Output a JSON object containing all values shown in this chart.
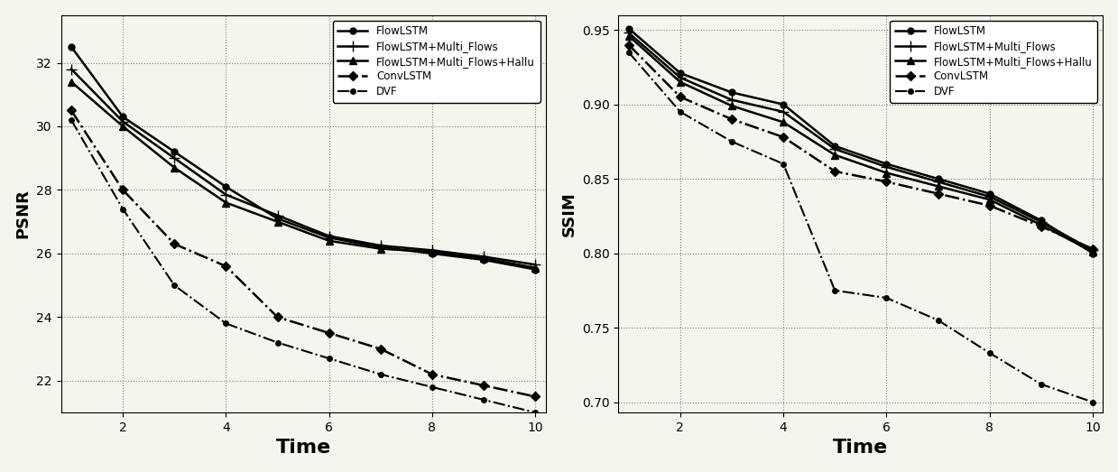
{
  "x": [
    1,
    2,
    3,
    4,
    5,
    6,
    7,
    8,
    9,
    10
  ],
  "psnr": {
    "FlowLSTM": [
      32.5,
      30.3,
      29.2,
      28.1,
      27.1,
      26.5,
      26.2,
      26.0,
      25.8,
      25.5
    ],
    "FlowLSTM+Multi_Flows": [
      31.8,
      30.15,
      29.0,
      27.85,
      27.2,
      26.55,
      26.25,
      26.1,
      25.9,
      25.65
    ],
    "FlowLSTM+Multi_Flows+Hallu": [
      31.4,
      30.0,
      28.7,
      27.6,
      27.0,
      26.4,
      26.15,
      26.05,
      25.85,
      25.55
    ],
    "ConvLSTM": [
      30.5,
      28.0,
      26.3,
      25.6,
      24.0,
      23.5,
      23.0,
      22.2,
      21.85,
      21.5
    ],
    "DVF": [
      30.2,
      27.4,
      25.0,
      23.8,
      23.2,
      22.7,
      22.2,
      21.8,
      21.4,
      21.0
    ]
  },
  "ssim": {
    "FlowLSTM": [
      0.951,
      0.921,
      0.908,
      0.9,
      0.872,
      0.86,
      0.85,
      0.84,
      0.822,
      0.8
    ],
    "FlowLSTM+Multi_Flows": [
      0.948,
      0.918,
      0.903,
      0.895,
      0.87,
      0.858,
      0.848,
      0.838,
      0.821,
      0.802
    ],
    "FlowLSTM+Multi_Flows+Hallu": [
      0.946,
      0.915,
      0.899,
      0.888,
      0.866,
      0.854,
      0.845,
      0.836,
      0.819,
      0.801
    ],
    "ConvLSTM": [
      0.94,
      0.905,
      0.89,
      0.878,
      0.855,
      0.848,
      0.84,
      0.832,
      0.818,
      0.803
    ],
    "DVF": [
      0.935,
      0.895,
      0.875,
      0.86,
      0.775,
      0.77,
      0.755,
      0.733,
      0.712,
      0.7
    ]
  },
  "styles": {
    "FlowLSTM": {
      "linestyle": "-",
      "marker": "o",
      "linewidth": 1.8,
      "markersize": 5,
      "markerfacecolor": "black"
    },
    "FlowLSTM+Multi_Flows": {
      "linestyle": "-",
      "marker": "+",
      "linewidth": 1.8,
      "markersize": 8,
      "markerfacecolor": "black"
    },
    "FlowLSTM+Multi_Flows+Hallu": {
      "linestyle": "-",
      "marker": "^",
      "linewidth": 1.8,
      "markersize": 6,
      "markerfacecolor": "black"
    },
    "ConvLSTM": {
      "linestyle": "-.",
      "marker": "D",
      "linewidth": 1.8,
      "markersize": 5,
      "markerfacecolor": "black"
    },
    "DVF": {
      "linestyle": "-.",
      "marker": "o",
      "linewidth": 1.5,
      "markersize": 4,
      "markerfacecolor": "black"
    }
  },
  "psnr_ylim": [
    21.0,
    33.5
  ],
  "ssim_ylim": [
    0.693,
    0.96
  ],
  "psnr_yticks": [
    22,
    24,
    26,
    28,
    30,
    32
  ],
  "ssim_yticks": [
    0.7,
    0.75,
    0.8,
    0.85,
    0.9,
    0.95
  ],
  "xticks": [
    2,
    4,
    6,
    8,
    10
  ],
  "xlim": [
    0.8,
    10.2
  ],
  "xlabel": "Time",
  "ylabel_left": "PSNR",
  "ylabel_right": "SSIM",
  "color": "black",
  "bg_color": "#f5f5f0",
  "legend_order": [
    "FlowLSTM",
    "FlowLSTM+Multi_Flows",
    "FlowLSTM+Multi_Flows+Hallu",
    "ConvLSTM",
    "DVF"
  ]
}
